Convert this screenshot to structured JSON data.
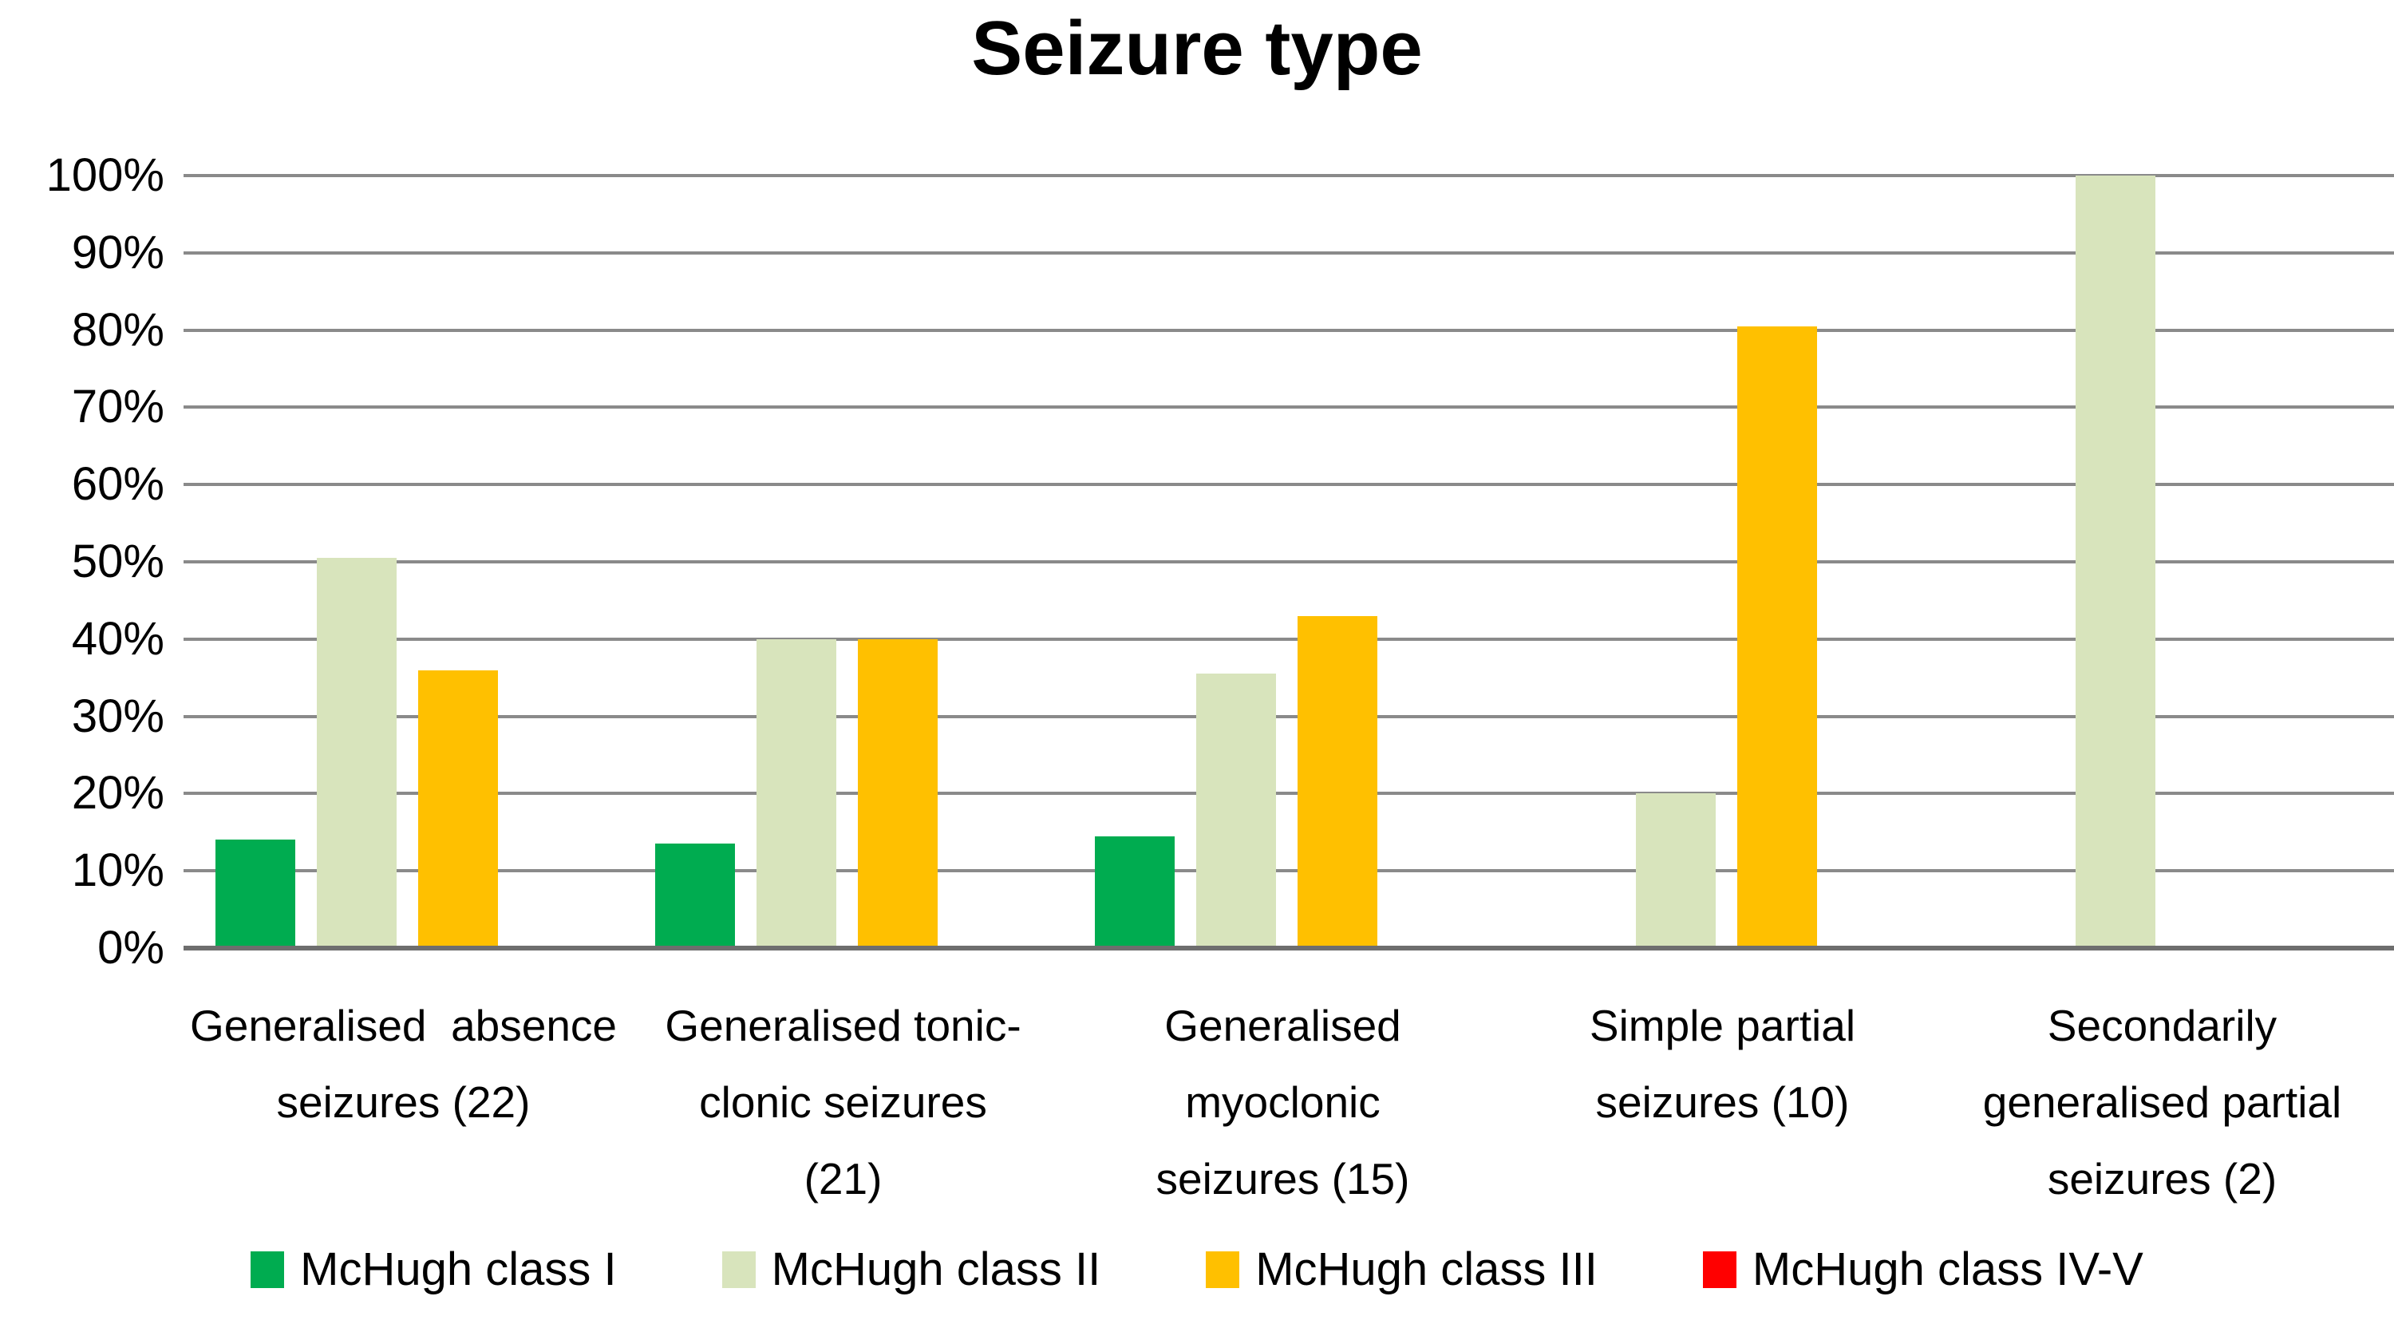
{
  "title": "Seizure type",
  "colors": {
    "class_i": "#00AC50",
    "class_ii": "#D8E4BC",
    "class_iii": "#FFC000",
    "class_iv_v": "#FF0000",
    "gridline": "#8A8A8A",
    "axis_line": "#6E6E6E",
    "text": "#000000",
    "background": "#FFFFFF"
  },
  "y_axis": {
    "min": 0,
    "max": 100,
    "step": 10,
    "tick_labels": [
      "100%",
      "90%",
      "80%",
      "70%",
      "60%",
      "50%",
      "40%",
      "30%",
      "20%",
      "10%",
      "0%"
    ]
  },
  "legend": [
    {
      "label": "McHugh class I",
      "color_key": "class_i",
      "slug": "class-i"
    },
    {
      "label": "McHugh class II",
      "color_key": "class_ii",
      "slug": "class-ii"
    },
    {
      "label": "McHugh class III",
      "color_key": "class_iii",
      "slug": "class-iii"
    },
    {
      "label": "McHugh class IV-V",
      "color_key": "class_iv_v",
      "slug": "class-iv-v"
    }
  ],
  "chart_data": {
    "type": "bar",
    "title": "Seizure type",
    "xlabel": "",
    "ylabel": "",
    "ylim": [
      0,
      100
    ],
    "ytick_step": 10,
    "grid": true,
    "legend_position": "bottom",
    "categories": [
      "Generalised  absence seizures (22)",
      "Generalised tonic-clonic seizures (21)",
      "Generalised myoclonic seizures (15)",
      "Simple partial seizures (10)",
      "Secondarily generalised partial seizures (2)"
    ],
    "category_label_lines": [
      [
        "Generalised  absence",
        "seizures (22)"
      ],
      [
        "Generalised tonic-",
        "clonic seizures",
        "(21)"
      ],
      [
        "Generalised",
        "myoclonic",
        "seizures (15)"
      ],
      [
        "Simple partial",
        "seizures (10)"
      ],
      [
        "Secondarily",
        "generalised partial",
        "seizures (2)"
      ]
    ],
    "series": [
      {
        "name": "McHugh class I",
        "slug": "class-i",
        "color_key": "class_i",
        "values": [
          14,
          13.5,
          14.5,
          0,
          0
        ]
      },
      {
        "name": "McHugh class II",
        "slug": "class-ii",
        "color_key": "class_ii",
        "values": [
          50.5,
          40,
          35.5,
          20,
          100
        ]
      },
      {
        "name": "McHugh class III",
        "slug": "class-iii",
        "color_key": "class_iii",
        "values": [
          36,
          40,
          43,
          80.5,
          0
        ]
      },
      {
        "name": "McHugh class IV-V",
        "slug": "class-iv-v",
        "color_key": "class_iv_v",
        "values": [
          0,
          0,
          0,
          0,
          0
        ]
      }
    ]
  }
}
